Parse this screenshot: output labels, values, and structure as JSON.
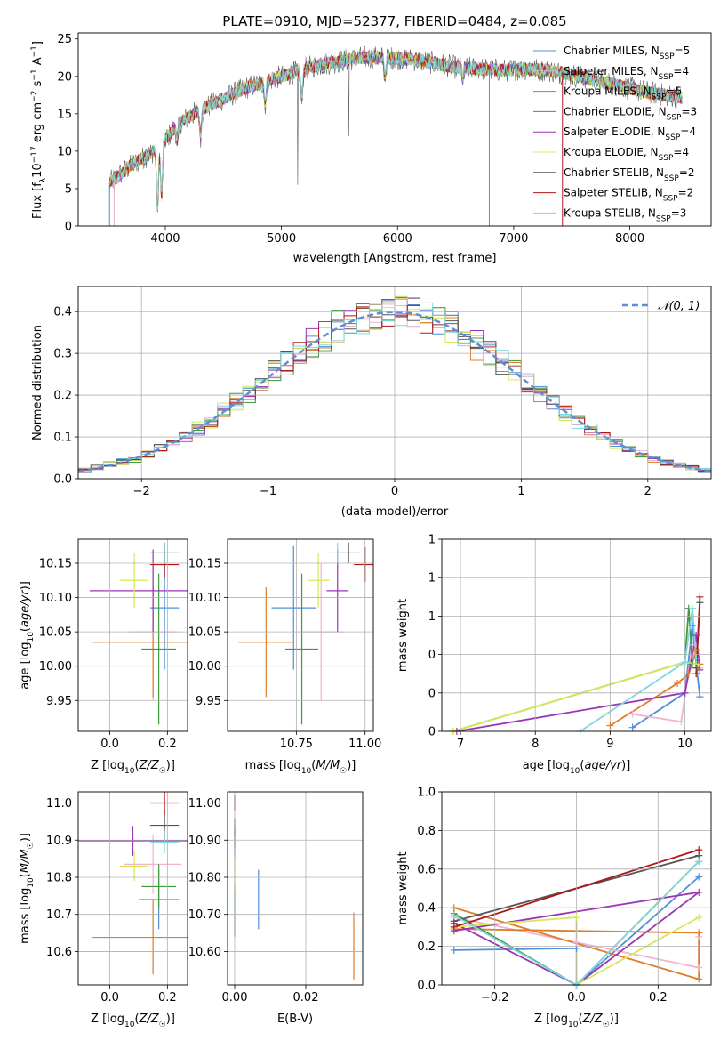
{
  "title": "PLATE=0910, MJD=52377, FIBERID=0484, z=0.085",
  "series_colors": [
    "#4f8fd8",
    "#f0b3d0",
    "#e07b2a",
    "#3d9a3d",
    "#9b35b5",
    "#d6e858",
    "#555555",
    "#b01818",
    "#7fd8e0"
  ],
  "chart_data": [
    {
      "type": "line",
      "panel": "spectrum",
      "title": "PLATE=0910, MJD=52377, FIBERID=0484, z=0.085",
      "xlabel": "wavelength [Angstrom, rest frame]",
      "ylabel": "Flux [f_λ10^{-17} erg cm^{-2} s^{-1} A^{-1}]",
      "xlim": [
        3250,
        8700
      ],
      "ylim": [
        0,
        25.8
      ],
      "xticks": [
        4000,
        5000,
        6000,
        7000,
        8000
      ],
      "yticks": [
        0,
        5,
        10,
        15,
        20,
        25
      ],
      "grid": false,
      "legend_position": "right",
      "legend": [
        {
          "name": "Chabrier MILES",
          "nssp": 5,
          "color": "#4f8fd8"
        },
        {
          "name": "Salpeter MILES",
          "nssp": 4,
          "color": "#f0b3d0"
        },
        {
          "name": "Kroupa MILES",
          "nssp": 5,
          "color": "#c97a1e"
        },
        {
          "name": "Chabrier ELODIE",
          "nssp": 3,
          "color": "#3d9a3d"
        },
        {
          "name": "Salpeter ELODIE",
          "nssp": 4,
          "color": "#9b35b5"
        },
        {
          "name": "Kroupa ELODIE",
          "nssp": 4,
          "color": "#d6e858"
        },
        {
          "name": "Chabrier STELIB",
          "nssp": 2,
          "color": "#555555"
        },
        {
          "name": "Salpeter STELIB",
          "nssp": 2,
          "color": "#b01818"
        },
        {
          "name": "Kroupa STELIB",
          "nssp": 3,
          "color": "#7fd8e0"
        }
      ],
      "continuum": {
        "x": [
          3500,
          3700,
          3900,
          4000,
          4100,
          4300,
          4500,
          4700,
          4900,
          5100,
          5300,
          5500,
          5700,
          5900,
          6100,
          6300,
          6500,
          6700,
          6900,
          7100,
          7300,
          7500,
          7700,
          7900,
          8100,
          8300,
          8450
        ],
        "y": [
          5.5,
          8.0,
          10.0,
          11.5,
          13.5,
          15.5,
          17.0,
          18.5,
          19.5,
          20.5,
          21.5,
          22.0,
          22.5,
          22.5,
          22.3,
          21.8,
          21.2,
          21.0,
          20.8,
          21.0,
          20.8,
          20.2,
          19.5,
          18.8,
          18.0,
          17.5,
          17.2
        ]
      },
      "absorption_features": [
        [
          3933,
          8
        ],
        [
          3968,
          7
        ],
        [
          4102,
          2
        ],
        [
          4304,
          3.5
        ],
        [
          4861,
          3
        ],
        [
          5175,
          4
        ],
        [
          5892,
          2.5
        ],
        [
          6563,
          1.5
        ]
      ],
      "spikes": [
        [
          5140,
          5.5
        ],
        [
          5580,
          12
        ]
      ]
    },
    {
      "type": "bar",
      "panel": "residual-histogram",
      "xlabel": "(data-model)/error",
      "ylabel": "Normed distribution",
      "xlim": [
        -2.5,
        2.5
      ],
      "ylim": [
        0,
        0.46
      ],
      "xticks": [
        -2,
        -1,
        0,
        1,
        2
      ],
      "yticks": [
        0.0,
        0.1,
        0.2,
        0.3,
        0.4
      ],
      "grid": true,
      "legend": [
        "𝒩(0, 1)"
      ],
      "legend_position": "upper right",
      "reference_curve": {
        "name": "𝒩(0, 1)",
        "mean": 0,
        "sigma": 1,
        "color": "#5b8fd6"
      },
      "bin_width": 0.1
    },
    {
      "type": "scatter",
      "panel": "age-vs-Z",
      "xlabel": "Z [log10(Z/Z☉)]",
      "ylabel": "age [log10(age/yr)]",
      "xlim": [
        -0.11,
        0.27
      ],
      "ylim": [
        9.905,
        10.185
      ],
      "xticks": [
        0.0,
        0.2
      ],
      "yticks": [
        9.95,
        10.0,
        10.05,
        10.1,
        10.15
      ],
      "grid": true,
      "points": [
        {
          "x": 0.19,
          "xerr": 0.05,
          "y": 10.085,
          "yerr": 0.09,
          "color": "#4f8fd8"
        },
        {
          "x": 0.15,
          "xerr": 0.085,
          "y": 10.05,
          "yerr": 0.1,
          "color": "#f0b3d0"
        },
        {
          "x": 0.15,
          "xerr": 0.21,
          "y": 10.035,
          "yerr": 0.08,
          "color": "#e07b2a"
        },
        {
          "x": 0.17,
          "xerr": 0.06,
          "y": 10.025,
          "yerr": 0.11,
          "color": "#3d9a3d"
        },
        {
          "x": 0.15,
          "xerr": 0.22,
          "y": 10.11,
          "yerr": 0.06,
          "color": "#9b35b5"
        },
        {
          "x": 0.085,
          "xerr": 0.05,
          "y": 10.125,
          "yerr": 0.04,
          "color": "#d6e858"
        },
        {
          "x": 0.19,
          "xerr": 0.05,
          "y": 10.165,
          "yerr": 0.015,
          "color": "#555555"
        },
        {
          "x": 0.19,
          "xerr": 0.05,
          "y": 10.148,
          "yerr": 0.02,
          "color": "#b01818"
        },
        {
          "x": 0.19,
          "xerr": 0.05,
          "y": 10.165,
          "yerr": 0.015,
          "color": "#7fd8e0"
        }
      ]
    },
    {
      "type": "scatter",
      "panel": "age-vs-mass",
      "xlabel": "mass [log10(M/M☉)]",
      "ylabel": "",
      "xlim": [
        10.5,
        11.03
      ],
      "ylim": [
        9.905,
        10.185
      ],
      "xticks": [
        10.75,
        11.0
      ],
      "yticks": [
        9.95,
        10.0,
        10.05,
        10.1,
        10.15
      ],
      "grid": true,
      "points": [
        {
          "x": 10.74,
          "xerr": 0.08,
          "y": 10.085,
          "yerr": 0.09,
          "color": "#4f8fd8"
        },
        {
          "x": 10.84,
          "xerr": 0.08,
          "y": 10.05,
          "yerr": 0.1,
          "color": "#f0b3d0"
        },
        {
          "x": 10.64,
          "xerr": 0.1,
          "y": 10.035,
          "yerr": 0.08,
          "color": "#e07b2a"
        },
        {
          "x": 10.77,
          "xerr": 0.06,
          "y": 10.025,
          "yerr": 0.11,
          "color": "#3d9a3d"
        },
        {
          "x": 10.9,
          "xerr": 0.04,
          "y": 10.11,
          "yerr": 0.06,
          "color": "#9b35b5"
        },
        {
          "x": 10.83,
          "xerr": 0.04,
          "y": 10.125,
          "yerr": 0.04,
          "color": "#d6e858"
        },
        {
          "x": 10.94,
          "xerr": 0.04,
          "y": 10.165,
          "yerr": 0.015,
          "color": "#555555"
        },
        {
          "x": 11.0,
          "xerr": 0.04,
          "y": 10.148,
          "yerr": 0.025,
          "color": "#b01818"
        },
        {
          "x": 10.9,
          "xerr": 0.04,
          "y": 10.165,
          "yerr": 0.015,
          "color": "#7fd8e0"
        }
      ]
    },
    {
      "type": "line",
      "panel": "mass-weight-vs-age",
      "xlabel": "age [log10(age/yr)]",
      "ylabel": "mass weight",
      "xlim": [
        6.75,
        10.35
      ],
      "ylim": [
        0,
        1.0
      ],
      "xticks": [
        7,
        8,
        9,
        10
      ],
      "yticks": [
        0.0,
        0.2,
        0.4,
        0.6,
        0.8,
        1.0
      ],
      "grid": true,
      "series": [
        {
          "color": "#4f8fd8",
          "x": [
            9.3,
            10.0,
            10.1,
            10.15,
            10.2
          ],
          "y": [
            0.02,
            0.2,
            0.55,
            0.35,
            0.18
          ]
        },
        {
          "color": "#f0b3d0",
          "x": [
            9.3,
            9.95,
            10.1,
            10.2
          ],
          "y": [
            0.09,
            0.05,
            0.45,
            0.33
          ]
        },
        {
          "color": "#e07b2a",
          "x": [
            9.0,
            9.9,
            10.05,
            10.15,
            10.2
          ],
          "y": [
            0.03,
            0.25,
            0.3,
            0.42,
            0.35
          ]
        },
        {
          "color": "#3d9a3d",
          "x": [
            6.9,
            10.0,
            10.05,
            10.1
          ],
          "y": [
            0.0,
            0.36,
            0.64,
            0.35
          ]
        },
        {
          "color": "#9b35b5",
          "x": [
            6.95,
            10.0,
            10.15,
            10.2
          ],
          "y": [
            0.0,
            0.2,
            0.5,
            0.32
          ]
        },
        {
          "color": "#d6e858",
          "x": [
            6.9,
            10.0,
            10.15,
            10.2
          ],
          "y": [
            0.0,
            0.36,
            0.35,
            0.3
          ]
        },
        {
          "color": "#555555",
          "x": [
            10.15,
            10.2
          ],
          "y": [
            0.33,
            0.67
          ]
        },
        {
          "color": "#b01818",
          "x": [
            10.15,
            10.2
          ],
          "y": [
            0.3,
            0.7
          ]
        },
        {
          "color": "#7fd8e0",
          "x": [
            8.6,
            10.0,
            10.1,
            10.15
          ],
          "y": [
            0.0,
            0.36,
            0.64,
            0.38
          ]
        }
      ]
    },
    {
      "type": "scatter",
      "panel": "mass-vs-Z",
      "xlabel": "Z [log10(Z/Z☉)]",
      "ylabel": "mass [log10(M/M☉)]",
      "xlim": [
        -0.11,
        0.27
      ],
      "ylim": [
        10.51,
        11.03
      ],
      "xticks": [
        0.0,
        0.2
      ],
      "yticks": [
        10.6,
        10.7,
        10.8,
        10.9,
        11.0
      ],
      "grid": true,
      "points": [
        {
          "x": 0.17,
          "xerr": 0.07,
          "y": 10.74,
          "yerr": 0.08,
          "color": "#4f8fd8"
        },
        {
          "x": 0.15,
          "xerr": 0.1,
          "y": 10.835,
          "yerr": 0.08,
          "color": "#f0b3d0"
        },
        {
          "x": 0.15,
          "xerr": 0.21,
          "y": 10.638,
          "yerr": 0.1,
          "color": "#e07b2a"
        },
        {
          "x": 0.17,
          "xerr": 0.06,
          "y": 10.775,
          "yerr": 0.06,
          "color": "#3d9a3d"
        },
        {
          "x": 0.08,
          "xerr": 0.2,
          "y": 10.898,
          "yerr": 0.04,
          "color": "#9b35b5"
        },
        {
          "x": 0.085,
          "xerr": 0.05,
          "y": 10.83,
          "yerr": 0.04,
          "color": "#d6e858"
        },
        {
          "x": 0.19,
          "xerr": 0.05,
          "y": 10.94,
          "yerr": 0.04,
          "color": "#555555"
        },
        {
          "x": 0.19,
          "xerr": 0.05,
          "y": 11.0,
          "yerr": 0.03,
          "color": "#b01818"
        },
        {
          "x": 0.19,
          "xerr": 0.05,
          "y": 10.895,
          "yerr": 0.03,
          "color": "#7fd8e0"
        }
      ]
    },
    {
      "type": "scatter",
      "panel": "mass-vs-EBV",
      "xlabel": "E(B-V)",
      "ylabel": "",
      "xlim": [
        -0.002,
        0.036
      ],
      "ylim": [
        10.51,
        11.03
      ],
      "xticks": [
        0.0,
        0.02
      ],
      "yticks": [
        10.6,
        10.7,
        10.8,
        10.9,
        11.0
      ],
      "grid": true,
      "points": [
        {
          "x": 0.0067,
          "y": 10.74,
          "yerr": 0.08,
          "color": "#4f8fd8"
        },
        {
          "x": 0.0,
          "y": 10.835,
          "yerr": 0.08,
          "color": "#f0b3d0"
        },
        {
          "x": 0.0335,
          "y": 10.615,
          "yerr": 0.09,
          "color": "#e07b2a"
        },
        {
          "x": 0.0,
          "y": 10.71,
          "yerr": 0.07,
          "color": "#3d9a3d"
        },
        {
          "x": 0.0,
          "y": 10.9,
          "yerr": 0.04,
          "color": "#9b35b5"
        },
        {
          "x": 0.0,
          "y": 10.81,
          "yerr": 0.05,
          "color": "#d6e858"
        },
        {
          "x": 0.0,
          "y": 10.92,
          "yerr": 0.04,
          "color": "#555555"
        },
        {
          "x": 0.0,
          "y": 11.0,
          "yerr": 0.02,
          "color": "#b01818"
        },
        {
          "x": 0.0,
          "y": 10.88,
          "yerr": 0.03,
          "color": "#7fd8e0"
        }
      ]
    },
    {
      "type": "line",
      "panel": "mass-weight-vs-Z",
      "xlabel": "Z [log10(Z/Z☉)]",
      "ylabel": "mass weight",
      "xlim": [
        -0.33,
        0.33
      ],
      "ylim": [
        0,
        1.0
      ],
      "xticks": [
        -0.2,
        0.0,
        0.2
      ],
      "yticks": [
        0.0,
        0.2,
        0.4,
        0.6,
        0.8,
        1.0
      ],
      "grid": true,
      "series": [
        {
          "color": "#4f8fd8",
          "x": [
            -0.3,
            0.0,
            0.0,
            0.3
          ],
          "y": [
            0.18,
            0.19,
            0.0,
            0.56
          ]
        },
        {
          "color": "#f0b3d0",
          "x": [
            -0.3,
            0.0,
            0.3,
            0.3
          ],
          "y": [
            0.35,
            0.22,
            0.09,
            0.25
          ]
        },
        {
          "color": "#e07b2a",
          "x": [
            -0.3,
            0.3,
            0.3,
            -0.3
          ],
          "y": [
            0.4,
            0.03,
            0.27,
            0.29
          ]
        },
        {
          "color": "#3d9a3d",
          "x": [
            -0.3,
            0.0,
            0.3
          ],
          "y": [
            0.37,
            0.0,
            0.64
          ]
        },
        {
          "color": "#9b35b5",
          "x": [
            -0.3,
            0.0,
            0.3,
            -0.3
          ],
          "y": [
            0.32,
            0.0,
            0.48,
            0.28
          ]
        },
        {
          "color": "#d6e858",
          "x": [
            -0.3,
            0.0,
            0.0,
            0.3
          ],
          "y": [
            0.3,
            0.35,
            0.0,
            0.35
          ]
        },
        {
          "color": "#555555",
          "x": [
            -0.3,
            0.3
          ],
          "y": [
            0.33,
            0.67
          ]
        },
        {
          "color": "#b01818",
          "x": [
            -0.3,
            0.3
          ],
          "y": [
            0.3,
            0.7
          ]
        },
        {
          "color": "#7fd8e0",
          "x": [
            -0.3,
            0.0,
            0.3
          ],
          "y": [
            0.36,
            0.0,
            0.64
          ]
        }
      ]
    }
  ]
}
